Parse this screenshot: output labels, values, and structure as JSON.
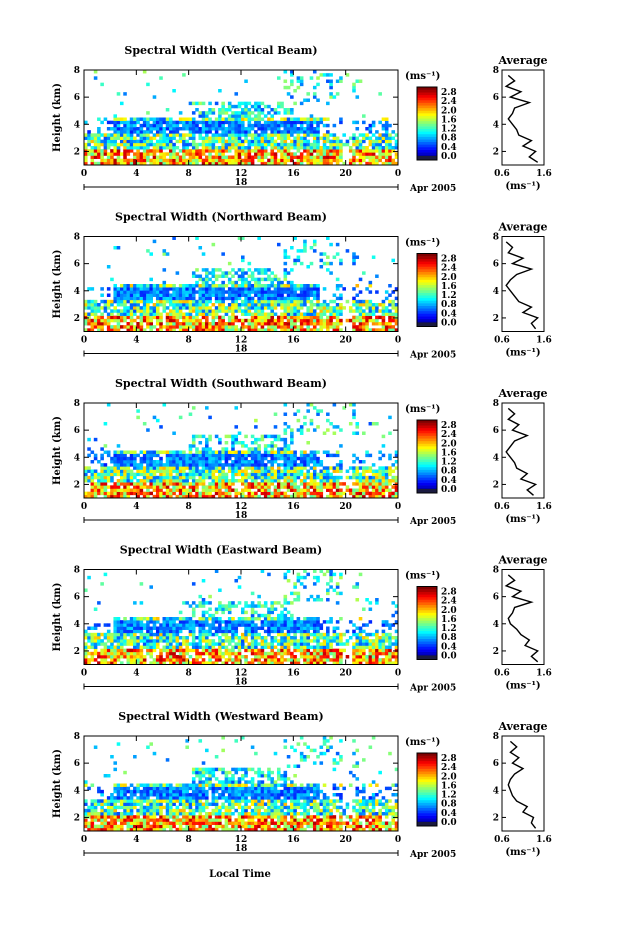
{
  "figure": {
    "bottom_xlabel": "Local Time"
  },
  "colorbar": {
    "unit_label": "(ms⁻¹)",
    "tick_labels": [
      "2.8",
      "2.4",
      "2.0",
      "1.6",
      "1.2",
      "0.8",
      "0.4",
      "0.0"
    ]
  },
  "chart_data": [
    {
      "type": "heatmap",
      "title": "Spectral Width (Vertical Beam)",
      "ylabel": "Height (km)",
      "x_ticks": [
        "0",
        "4",
        "8",
        "12",
        "16",
        "20",
        "0"
      ],
      "x_date_label": "18",
      "date_suffix": "Apr 2005",
      "y_ticks": [
        "2",
        "4",
        "6",
        "8"
      ],
      "xlim": [
        0,
        24
      ],
      "ylim": [
        1,
        8
      ],
      "color_range": [
        0.0,
        2.8
      ],
      "color_unit": "ms⁻¹",
      "average_profile": {
        "title": "Average",
        "xlabel": "(ms⁻¹)",
        "x_ticks": [
          "0.6",
          "1.6"
        ],
        "y_ticks": [
          "2",
          "4",
          "6",
          "8"
        ],
        "xlim": [
          0.6,
          1.6
        ],
        "height": [
          1.2,
          1.6,
          2.0,
          2.4,
          2.8,
          3.2,
          3.6,
          4.0,
          4.4,
          4.8,
          5.2,
          5.6,
          6.0,
          6.4,
          6.8,
          7.2,
          7.6
        ],
        "width": [
          1.45,
          1.25,
          1.4,
          1.1,
          1.3,
          1.0,
          0.95,
          0.85,
          0.75,
          0.85,
          0.9,
          1.25,
          0.8,
          1.05,
          0.7,
          0.9,
          0.75
        ]
      }
    },
    {
      "type": "heatmap",
      "title": "Spectral Width (Northward Beam)",
      "ylabel": "Height (km)",
      "x_ticks": [
        "0",
        "4",
        "8",
        "12",
        "16",
        "20",
        "0"
      ],
      "x_date_label": "18",
      "date_suffix": "Apr 2005",
      "y_ticks": [
        "2",
        "4",
        "6",
        "8"
      ],
      "xlim": [
        0,
        24
      ],
      "ylim": [
        1,
        8
      ],
      "color_range": [
        0.0,
        2.8
      ],
      "color_unit": "ms⁻¹",
      "average_profile": {
        "title": "Average",
        "xlabel": "(ms⁻¹)",
        "x_ticks": [
          "0.6",
          "1.6"
        ],
        "y_ticks": [
          "2",
          "4",
          "6",
          "8"
        ],
        "xlim": [
          0.6,
          1.6
        ],
        "height": [
          1.2,
          1.6,
          2.0,
          2.4,
          2.8,
          3.2,
          3.6,
          4.0,
          4.4,
          4.8,
          5.2,
          5.6,
          6.0,
          6.4,
          6.8,
          7.2,
          7.6
        ],
        "width": [
          1.4,
          1.3,
          1.45,
          1.1,
          1.3,
          1.0,
          0.9,
          0.8,
          0.7,
          0.8,
          0.95,
          1.3,
          0.85,
          1.1,
          0.75,
          0.85,
          0.7
        ]
      }
    },
    {
      "type": "heatmap",
      "title": "Spectral Width (Southward Beam)",
      "ylabel": "Height (km)",
      "x_ticks": [
        "0",
        "4",
        "8",
        "12",
        "16",
        "20",
        "0"
      ],
      "x_date_label": "18",
      "date_suffix": "Apr 2005",
      "y_ticks": [
        "2",
        "4",
        "6",
        "8"
      ],
      "xlim": [
        0,
        24
      ],
      "ylim": [
        1,
        8
      ],
      "color_range": [
        0.0,
        2.8
      ],
      "color_unit": "ms⁻¹",
      "average_profile": {
        "title": "Average",
        "xlabel": "(ms⁻¹)",
        "x_ticks": [
          "0.6",
          "1.6"
        ],
        "y_ticks": [
          "2",
          "4",
          "6",
          "8"
        ],
        "xlim": [
          0.6,
          1.6
        ],
        "height": [
          1.2,
          1.6,
          2.0,
          2.4,
          2.8,
          3.2,
          3.6,
          4.0,
          4.4,
          4.8,
          5.2,
          5.6,
          6.0,
          6.4,
          6.8,
          7.2,
          7.6
        ],
        "width": [
          1.35,
          1.2,
          1.4,
          1.05,
          1.2,
          0.95,
          0.9,
          0.8,
          0.7,
          0.8,
          0.9,
          1.2,
          0.85,
          1.0,
          0.75,
          0.9,
          0.75
        ]
      }
    },
    {
      "type": "heatmap",
      "title": "Spectral Width (Eastward Beam)",
      "ylabel": "Height (km)",
      "x_ticks": [
        "0",
        "4",
        "8",
        "12",
        "16",
        "20",
        "0"
      ],
      "x_date_label": "18",
      "date_suffix": "Apr 2005",
      "y_ticks": [
        "2",
        "4",
        "6",
        "8"
      ],
      "xlim": [
        0,
        24
      ],
      "ylim": [
        1,
        8
      ],
      "color_range": [
        0.0,
        2.8
      ],
      "color_unit": "ms⁻¹",
      "average_profile": {
        "title": "Average",
        "xlabel": "(ms⁻¹)",
        "x_ticks": [
          "0.6",
          "1.6"
        ],
        "y_ticks": [
          "2",
          "4",
          "6",
          "8"
        ],
        "xlim": [
          0.6,
          1.6
        ],
        "height": [
          1.2,
          1.6,
          2.0,
          2.4,
          2.8,
          3.2,
          3.6,
          4.0,
          4.4,
          4.8,
          5.2,
          5.6,
          6.0,
          6.4,
          6.8,
          7.2,
          7.6
        ],
        "width": [
          1.45,
          1.3,
          1.45,
          1.15,
          1.25,
          1.05,
          0.95,
          0.8,
          0.75,
          0.85,
          0.9,
          1.3,
          0.85,
          1.05,
          0.7,
          0.9,
          0.75
        ]
      }
    },
    {
      "type": "heatmap",
      "title": "Spectral Width (Westward Beam)",
      "ylabel": "Height (km)",
      "x_ticks": [
        "0",
        "4",
        "8",
        "12",
        "16",
        "20",
        "0"
      ],
      "x_date_label": "18",
      "date_suffix": "Apr 2005",
      "y_ticks": [
        "2",
        "4",
        "6",
        "8"
      ],
      "xlim": [
        0,
        24
      ],
      "ylim": [
        1,
        8
      ],
      "color_range": [
        0.0,
        2.8
      ],
      "color_unit": "ms⁻¹",
      "average_profile": {
        "title": "Average",
        "xlabel": "(ms⁻¹)",
        "x_ticks": [
          "0.6",
          "1.6"
        ],
        "y_ticks": [
          "2",
          "4",
          "6",
          "8"
        ],
        "xlim": [
          0.6,
          1.6
        ],
        "height": [
          1.2,
          1.6,
          2.0,
          2.4,
          2.8,
          3.2,
          3.6,
          4.0,
          4.4,
          4.8,
          5.2,
          5.6,
          6.0,
          6.4,
          6.8,
          7.2,
          7.6
        ],
        "width": [
          1.4,
          1.3,
          1.35,
          1.1,
          1.2,
          0.95,
          0.85,
          0.8,
          0.75,
          0.8,
          0.9,
          1.1,
          0.85,
          1.0,
          0.8,
          0.95,
          0.8
        ]
      }
    }
  ]
}
